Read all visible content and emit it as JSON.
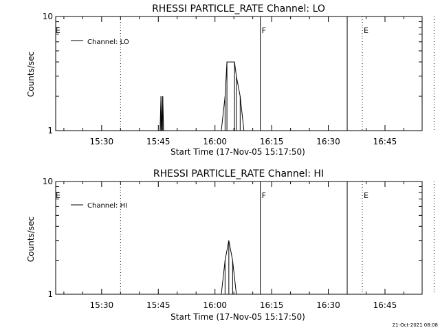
{
  "chart_data": [
    {
      "type": "line",
      "title": "RHESSI PARTICLE_RATE Channel: LO",
      "xlabel": "Start Time (17-Nov-05 15:17:50)",
      "ylabel": "Counts/sec",
      "y_scale": "log",
      "ylim": [
        1,
        10
      ],
      "xlim_min_after_start": [
        0,
        97
      ],
      "x_ticks": [
        "15:30",
        "15:45",
        "16:00",
        "16:15",
        "16:30",
        "16:45"
      ],
      "y_ticks": [
        "1",
        "10"
      ],
      "legend": {
        "label": "Channel: LO",
        "placement": "top-left"
      },
      "markers": [
        {
          "time": "15:35",
          "label": "",
          "style": "dotted"
        },
        {
          "time": "16:12",
          "label": "F",
          "style": "solid"
        },
        {
          "time": "16:35",
          "label": "",
          "style": "solid"
        },
        {
          "time": "16:39",
          "label": "E",
          "style": "dotted"
        },
        {
          "time": "16:58",
          "label": "",
          "style": "dotted"
        }
      ],
      "edge_label": "E",
      "series": [
        {
          "values": [
            [
              "15:45:28",
              1
            ],
            [
              "15:45:42",
              2
            ],
            [
              "15:45:56",
              1
            ],
            [
              "15:46:10",
              2
            ],
            [
              "15:46:24",
              1
            ],
            [
              "16:01:40",
              1
            ],
            [
              "16:02:40",
              2
            ],
            [
              "16:03:10",
              4
            ],
            [
              "16:05:10",
              4
            ],
            [
              "16:05:40",
              3
            ],
            [
              "16:06:40",
              2
            ],
            [
              "16:07:40",
              1
            ]
          ]
        }
      ]
    },
    {
      "type": "line",
      "title": "RHESSI PARTICLE_RATE Channel: HI",
      "xlabel": "Start Time (17-Nov-05 15:17:50)",
      "ylabel": "Counts/sec",
      "y_scale": "log",
      "ylim": [
        1,
        10
      ],
      "xlim_min_after_start": [
        0,
        97
      ],
      "x_ticks": [
        "15:30",
        "15:45",
        "16:00",
        "16:15",
        "16:30",
        "16:45"
      ],
      "y_ticks": [
        "1",
        "10"
      ],
      "legend": {
        "label": "Channel: HI",
        "placement": "top-left"
      },
      "markers": [
        {
          "time": "15:35",
          "label": "",
          "style": "dotted"
        },
        {
          "time": "16:12",
          "label": "F",
          "style": "solid"
        },
        {
          "time": "16:35",
          "label": "",
          "style": "solid"
        },
        {
          "time": "16:39",
          "label": "E",
          "style": "dotted"
        },
        {
          "time": "16:58",
          "label": "",
          "style": "dotted"
        }
      ],
      "edge_label": "E",
      "series": [
        {
          "values": [
            [
              "16:01:40",
              1
            ],
            [
              "16:02:40",
              2
            ],
            [
              "16:03:40",
              3
            ],
            [
              "16:04:40",
              2
            ],
            [
              "16:05:40",
              1
            ]
          ]
        }
      ]
    }
  ],
  "footer": {
    "timestamp": "21-Oct-2021 08:08"
  }
}
